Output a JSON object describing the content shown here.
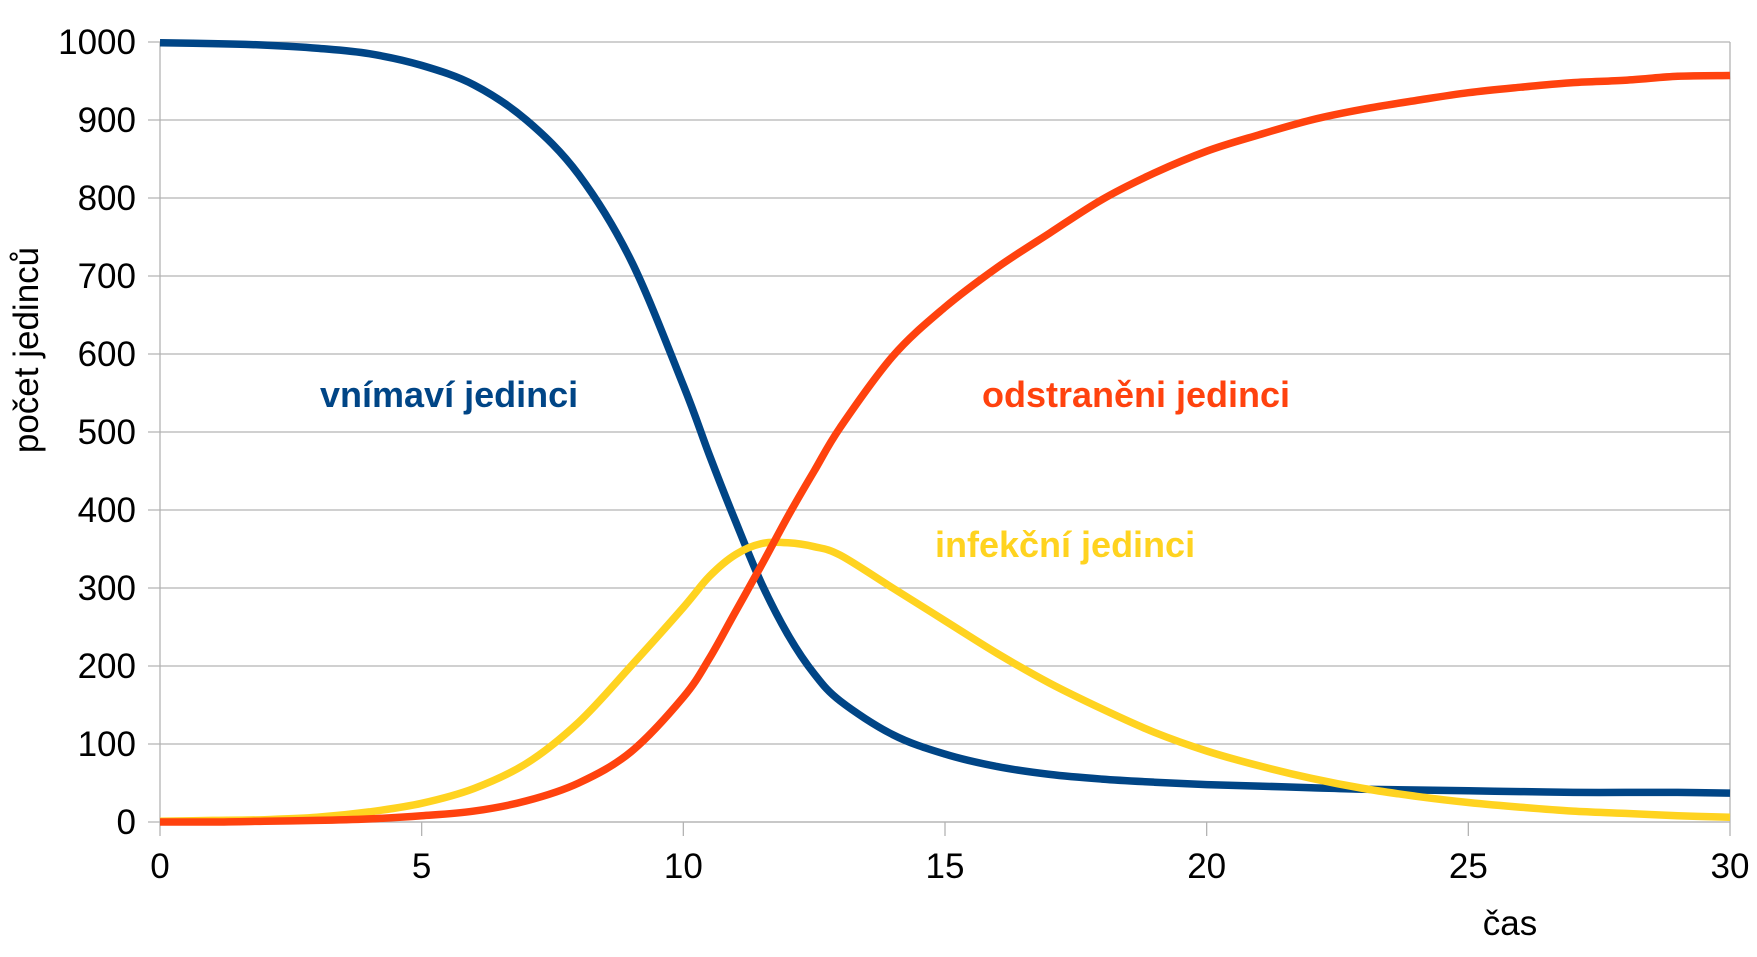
{
  "chart_data": {
    "type": "line",
    "title": "",
    "xlabel": "čas",
    "ylabel": "počet jedinců",
    "xlim": [
      0,
      30
    ],
    "ylim": [
      0,
      1000
    ],
    "x_ticks": [
      0,
      5,
      10,
      15,
      20,
      25,
      30
    ],
    "y_ticks": [
      0,
      100,
      200,
      300,
      400,
      500,
      600,
      700,
      800,
      900,
      1000
    ],
    "grid": "horizontal",
    "legend": "none (series labelled inline on the plot)",
    "x": [
      0,
      1,
      2,
      3,
      4,
      5,
      6,
      7,
      8,
      9,
      10,
      10.5,
      11,
      11.5,
      12,
      12.5,
      13,
      14,
      15,
      16,
      17,
      18,
      19,
      20,
      21,
      22,
      23,
      24,
      25,
      26,
      27,
      28,
      29,
      30
    ],
    "series": [
      {
        "name": "vnímaví jedinci",
        "color": "#004586",
        "values": [
          999,
          998,
          996,
          992,
          985,
          970,
          945,
          900,
          830,
          720,
          560,
          470,
          385,
          305,
          240,
          190,
          155,
          112,
          87,
          71,
          61,
          55,
          51,
          48,
          46,
          44,
          42,
          41,
          40,
          39,
          38,
          38,
          38,
          37
        ]
      },
      {
        "name": "infekční jedinci",
        "color": "#ffd320",
        "values": [
          1,
          2,
          3,
          6,
          13,
          24,
          43,
          75,
          128,
          200,
          275,
          315,
          343,
          357,
          358,
          353,
          342,
          300,
          258,
          216,
          178,
          145,
          115,
          91,
          72,
          56,
          43,
          33,
          25,
          19,
          14,
          11,
          8,
          6
        ]
      },
      {
        "name": "odstraněni jedinci",
        "color": "#ff420e",
        "values": [
          0,
          0,
          1,
          2,
          4,
          8,
          14,
          27,
          50,
          90,
          160,
          210,
          270,
          330,
          392,
          450,
          506,
          597,
          660,
          711,
          755,
          798,
          832,
          860,
          881,
          900,
          914,
          925,
          935,
          942,
          948,
          951,
          956,
          957
        ]
      }
    ]
  }
}
